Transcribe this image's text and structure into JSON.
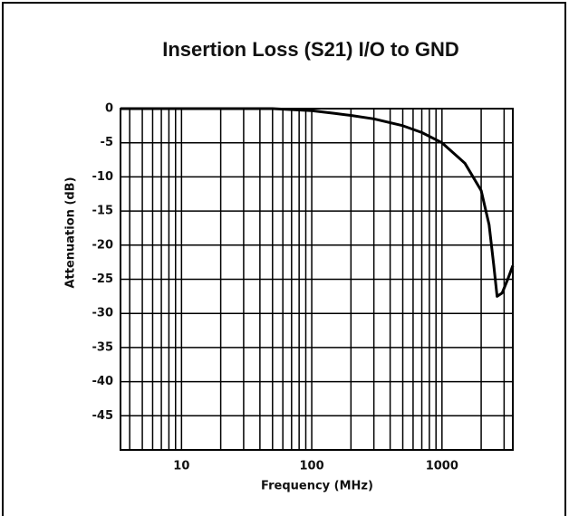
{
  "chart_data": {
    "type": "line",
    "title": "Insertion Loss (S21) I/O to GND",
    "x_label": "Frequency (MHz)",
    "y_label": "Attenuation (dB)",
    "x": [
      3.4,
      10,
      50,
      100,
      150,
      200,
      300,
      500,
      700,
      1000,
      1500,
      2000,
      2300,
      2500,
      2650,
      2900,
      3200,
      3500
    ],
    "series": [
      {
        "name": "S21",
        "color": "#000000",
        "values": [
          0,
          0,
          0,
          -0.3,
          -0.7,
          -1,
          -1.5,
          -2.5,
          -3.5,
          -5,
          -8,
          -12,
          -17,
          -23,
          -27.5,
          -27,
          -25,
          -23
        ]
      }
    ],
    "xlim": [
      3.4,
      3500
    ],
    "xscale": "log",
    "xticks": [
      10,
      100,
      1000
    ],
    "xgrid": [
      4,
      5,
      6,
      7,
      8,
      9,
      10,
      20,
      30,
      40,
      50,
      60,
      70,
      80,
      90,
      100,
      200,
      300,
      400,
      500,
      600,
      700,
      800,
      900,
      1000,
      2000,
      3000
    ],
    "ylim": [
      -50,
      0
    ],
    "yticks": [
      0,
      -5,
      -10,
      -15,
      -20,
      -25,
      -30,
      -35,
      -40,
      -45
    ],
    "grid": true
  }
}
